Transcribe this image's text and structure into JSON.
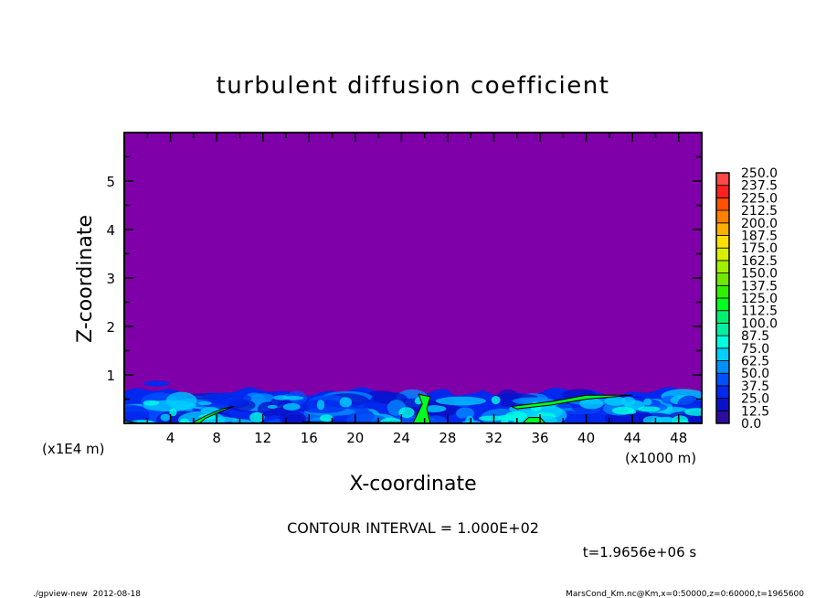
{
  "chart_data": {
    "type": "heatmap",
    "title": "turbulent diffusion coefficient",
    "xlabel": "X-coordinate",
    "ylabel": "Z-coordinate",
    "x_unit": "(x1000 m)",
    "y_unit": "(x1E4 m)",
    "xlim": [
      0,
      50
    ],
    "ylim": [
      0,
      6
    ],
    "x_ticks": [
      4,
      8,
      12,
      16,
      20,
      24,
      28,
      32,
      36,
      40,
      44,
      48
    ],
    "y_ticks": [
      1,
      2,
      3,
      4,
      5
    ],
    "colorbar": {
      "levels": [
        0.0,
        12.5,
        25.0,
        37.5,
        50.0,
        62.5,
        75.0,
        87.5,
        100.0,
        112.5,
        125.0,
        137.5,
        150.0,
        162.5,
        175.0,
        187.5,
        200.0,
        212.5,
        225.0,
        237.5,
        250.0
      ],
      "labels": [
        "0.0",
        "12.5",
        "25.0",
        "37.5",
        "50.0",
        "62.5",
        "75.0",
        "87.5",
        "100.0",
        "112.5",
        "125.0",
        "137.5",
        "150.0",
        "162.5",
        "175.0",
        "187.5",
        "200.0",
        "212.5",
        "225.0",
        "237.5",
        "250.0"
      ],
      "colors": [
        "#7000a8",
        "#2c0ca0",
        "#0a10c8",
        "#0028ee",
        "#0050ff",
        "#0090ff",
        "#00d0ff",
        "#00ffe0",
        "#00f0a0",
        "#00f070",
        "#00ff20",
        "#30f000",
        "#70e800",
        "#a0f000",
        "#d8f000",
        "#ffe000",
        "#ffb000",
        "#ff8000",
        "#ff5000",
        "#ff2020",
        "#ff4848",
        "#ff8080"
      ]
    },
    "background_color": "#7f00a8",
    "contour_interval": "CONTOUR INTERVAL = 1.000E+02",
    "time_label": "t=1.9656e+06 s",
    "boundary_layer_top_approx": 0.65
  },
  "footer": {
    "left": "./gpview-new  2012-08-18",
    "right": "MarsCond_Km.nc@Km,x=0:50000,z=0:60000,t=1965600"
  }
}
